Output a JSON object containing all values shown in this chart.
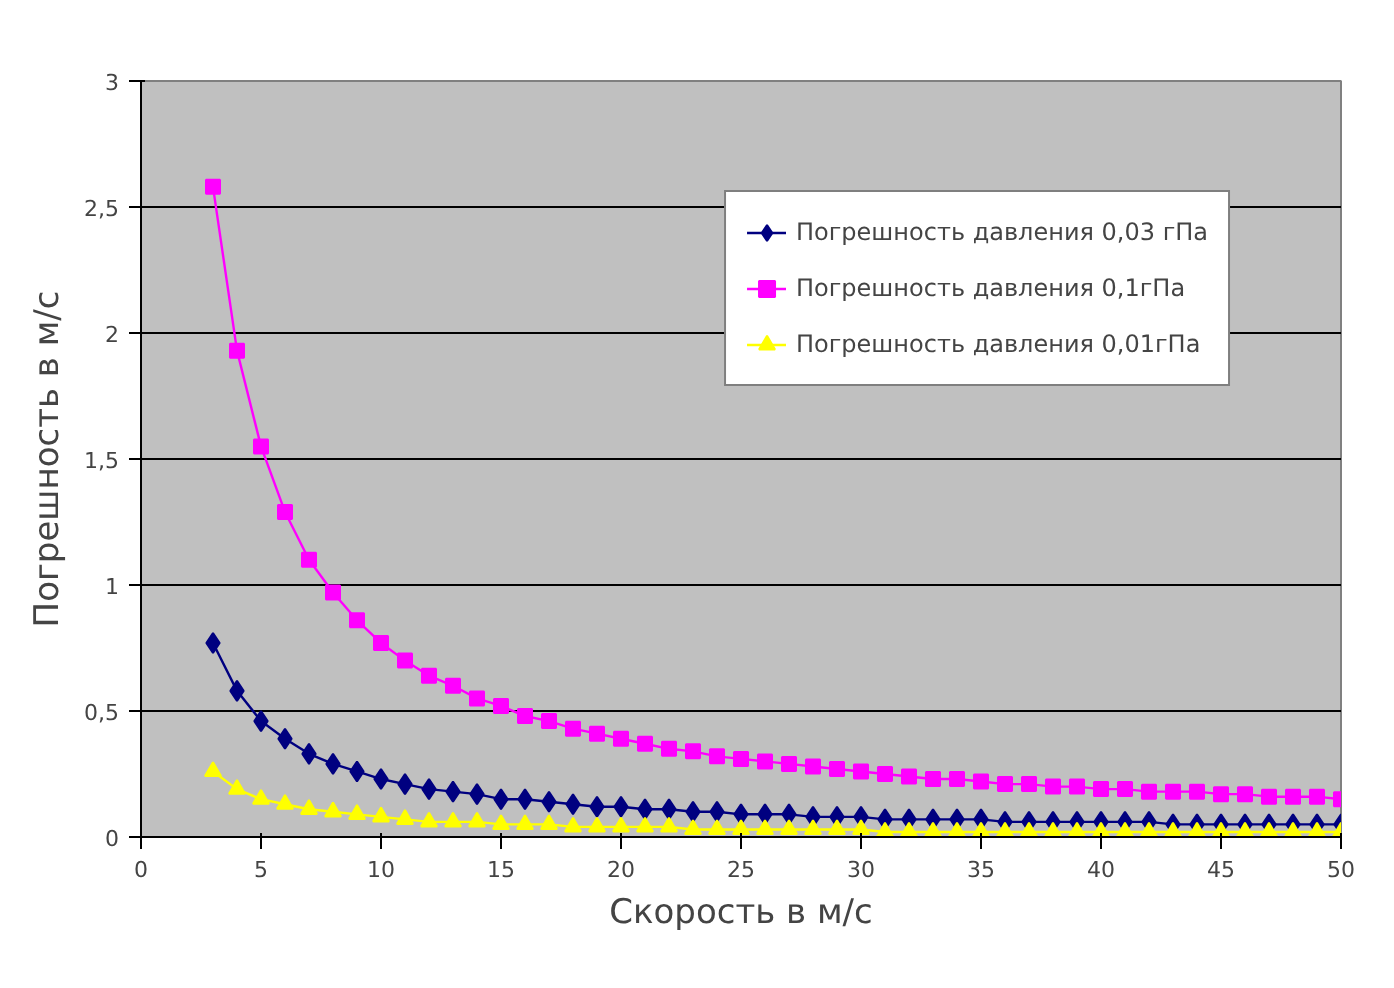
{
  "chart_data": {
    "type": "line",
    "xlabel": "Скорость в м/с",
    "ylabel": "Погрешность в м/с",
    "x": [
      3,
      4,
      5,
      6,
      7,
      8,
      9,
      10,
      11,
      12,
      13,
      14,
      15,
      16,
      17,
      18,
      19,
      20,
      21,
      22,
      23,
      24,
      25,
      26,
      27,
      28,
      29,
      30,
      31,
      32,
      33,
      34,
      35,
      36,
      37,
      38,
      39,
      40,
      41,
      42,
      43,
      44,
      45,
      46,
      47,
      48,
      49,
      50
    ],
    "xlim": [
      0,
      50
    ],
    "xticks": [
      0,
      5,
      10,
      15,
      20,
      25,
      30,
      35,
      40,
      45,
      50
    ],
    "ylim": [
      0,
      3
    ],
    "yticks": [
      0,
      {
        "value": 0.5,
        "label": "0,5"
      },
      1,
      {
        "value": 1.5,
        "label": "1,5"
      },
      2,
      {
        "value": 2.5,
        "label": "2,5"
      },
      3
    ],
    "grid": "y",
    "legend": "top right",
    "line_style": "solid",
    "series": [
      {
        "name": "Погрешность давления 0,03 гПа",
        "color": "#000080",
        "marker": "diamond",
        "values": [
          0.77,
          0.58,
          0.46,
          0.39,
          0.33,
          0.29,
          0.26,
          0.23,
          0.21,
          0.19,
          0.18,
          0.17,
          0.15,
          0.15,
          0.14,
          0.13,
          0.12,
          0.12,
          0.11,
          0.11,
          0.1,
          0.1,
          0.09,
          0.09,
          0.09,
          0.08,
          0.08,
          0.08,
          0.07,
          0.07,
          0.07,
          0.07,
          0.07,
          0.06,
          0.06,
          0.06,
          0.06,
          0.06,
          0.06,
          0.06,
          0.05,
          0.05,
          0.05,
          0.05,
          0.05,
          0.05,
          0.05,
          0.05
        ]
      },
      {
        "name": "Погрешность давления 0,1гПа",
        "color": "#ff00ff",
        "marker": "square",
        "values": [
          2.58,
          1.93,
          1.55,
          1.29,
          1.1,
          0.97,
          0.86,
          0.77,
          0.7,
          0.64,
          0.6,
          0.55,
          0.52,
          0.48,
          0.46,
          0.43,
          0.41,
          0.39,
          0.37,
          0.35,
          0.34,
          0.32,
          0.31,
          0.3,
          0.29,
          0.28,
          0.27,
          0.26,
          0.25,
          0.24,
          0.23,
          0.23,
          0.22,
          0.21,
          0.21,
          0.2,
          0.2,
          0.19,
          0.19,
          0.18,
          0.18,
          0.18,
          0.17,
          0.17,
          0.16,
          0.16,
          0.16,
          0.15
        ]
      },
      {
        "name": "Погрешность давления 0,01гПа",
        "color": "#ffff00",
        "marker": "triangle",
        "values": [
          0.26,
          0.19,
          0.15,
          0.13,
          0.11,
          0.1,
          0.09,
          0.08,
          0.07,
          0.06,
          0.06,
          0.06,
          0.05,
          0.05,
          0.05,
          0.04,
          0.04,
          0.04,
          0.04,
          0.04,
          0.03,
          0.03,
          0.03,
          0.03,
          0.03,
          0.03,
          0.03,
          0.03,
          0.02,
          0.02,
          0.02,
          0.02,
          0.02,
          0.02,
          0.02,
          0.02,
          0.02,
          0.02,
          0.02,
          0.02,
          0.02,
          0.02,
          0.02,
          0.02,
          0.02,
          0.02,
          0.02,
          0.02
        ]
      }
    ]
  }
}
